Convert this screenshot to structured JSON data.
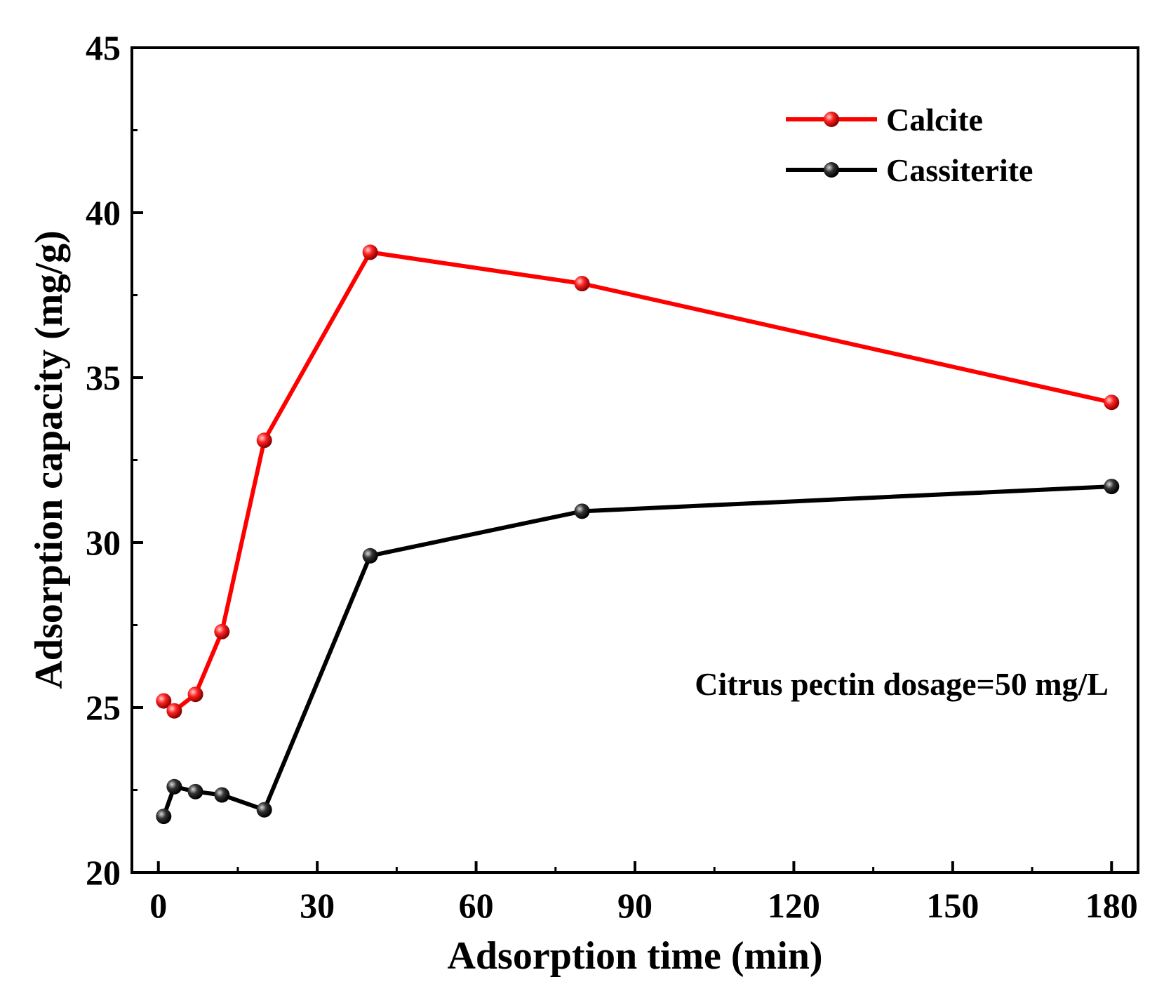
{
  "chart_data": {
    "type": "line",
    "xlabel": "Adsorption time (min)",
    "ylabel": "Adsorption capacity (mg/g)",
    "xlim": [
      -5,
      185
    ],
    "ylim": [
      20,
      45
    ],
    "xticks": [
      0,
      30,
      60,
      90,
      120,
      150,
      180
    ],
    "yticks": [
      20,
      25,
      30,
      35,
      40,
      45
    ],
    "x": [
      1,
      3,
      7,
      12,
      20,
      40,
      80,
      180
    ],
    "series": [
      {
        "name": "Calcite",
        "color": "#ff0000",
        "values": [
          25.2,
          24.9,
          25.4,
          27.3,
          33.1,
          38.8,
          37.85,
          34.25
        ]
      },
      {
        "name": "Cassiterite",
        "color": "#000000",
        "values": [
          21.7,
          22.6,
          22.45,
          22.35,
          21.9,
          29.6,
          30.95,
          31.7
        ]
      }
    ],
    "legend_position": "top-right",
    "annotation": "Citrus pectin dosage=50 mg/L",
    "grid": false
  }
}
